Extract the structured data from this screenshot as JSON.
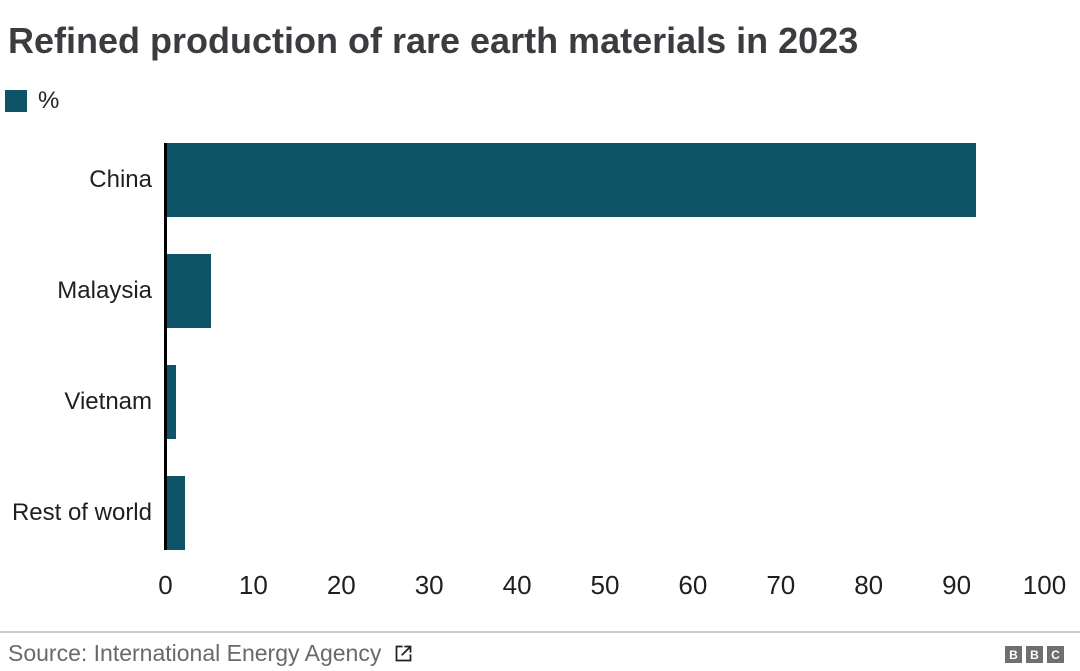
{
  "header": {
    "title": "Refined production of rare earth materials in 2023"
  },
  "legend": {
    "label": "%",
    "swatch_color": "#0e5467"
  },
  "chart_data": {
    "type": "bar",
    "orientation": "horizontal",
    "title": "Refined production of rare earth materials in 2023",
    "unit": "%",
    "categories": [
      "China",
      "Malaysia",
      "Vietnam",
      "Rest of world"
    ],
    "values": [
      92,
      5,
      1,
      2
    ],
    "xlabel": "",
    "ylabel": "",
    "xlim": [
      0,
      100
    ],
    "xticks": [
      0,
      10,
      20,
      30,
      40,
      50,
      60,
      70,
      80,
      90,
      100
    ],
    "bar_color": "#0e5467",
    "axis_color": "#000000",
    "grid": false,
    "legend_entries": [
      "%"
    ],
    "legend_position": "top-left"
  },
  "footer": {
    "source": "Source: International Energy Agency",
    "logo_letters": [
      "B",
      "B",
      "C"
    ],
    "logo_color": "#6e6e73"
  }
}
